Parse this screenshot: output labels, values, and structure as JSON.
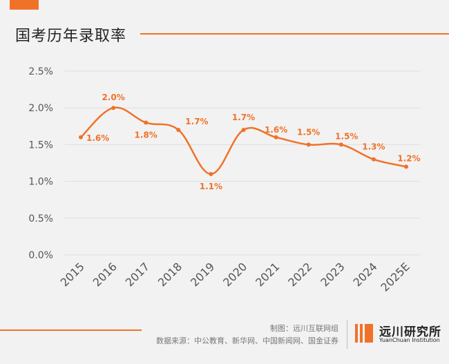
{
  "header": {
    "title": "国考历年录取率"
  },
  "chart_data": {
    "type": "line",
    "categories": [
      "2015",
      "2016",
      "2017",
      "2018",
      "2019",
      "2020",
      "2021",
      "2022",
      "2023",
      "2024",
      "2025E"
    ],
    "series": [
      {
        "values": [
          1.6,
          2.0,
          1.8,
          1.7,
          1.1,
          1.7,
          1.6,
          1.5,
          1.5,
          1.3,
          1.2
        ],
        "labels": [
          "1.6%",
          "2.0%",
          "1.8%",
          "1.7%",
          "1.1%",
          "1.7%",
          "1.6%",
          "1.5%",
          "1.5%",
          "1.3%",
          "1.2%"
        ]
      }
    ],
    "y_ticks": [
      "0.0%",
      "0.5%",
      "1.0%",
      "1.5%",
      "2.0%",
      "2.5%"
    ],
    "ylim": [
      0,
      2.5
    ],
    "grid": true,
    "line_style": "smooth",
    "accent_color": "#f07228"
  },
  "footer": {
    "maker": "制图：远川互联网组",
    "source": "数据来源：中公教育、新华网、中国新闻网、国金证券"
  },
  "logo": {
    "name_cn": "远川研究所",
    "name_en": "YuanChuan Institution"
  }
}
